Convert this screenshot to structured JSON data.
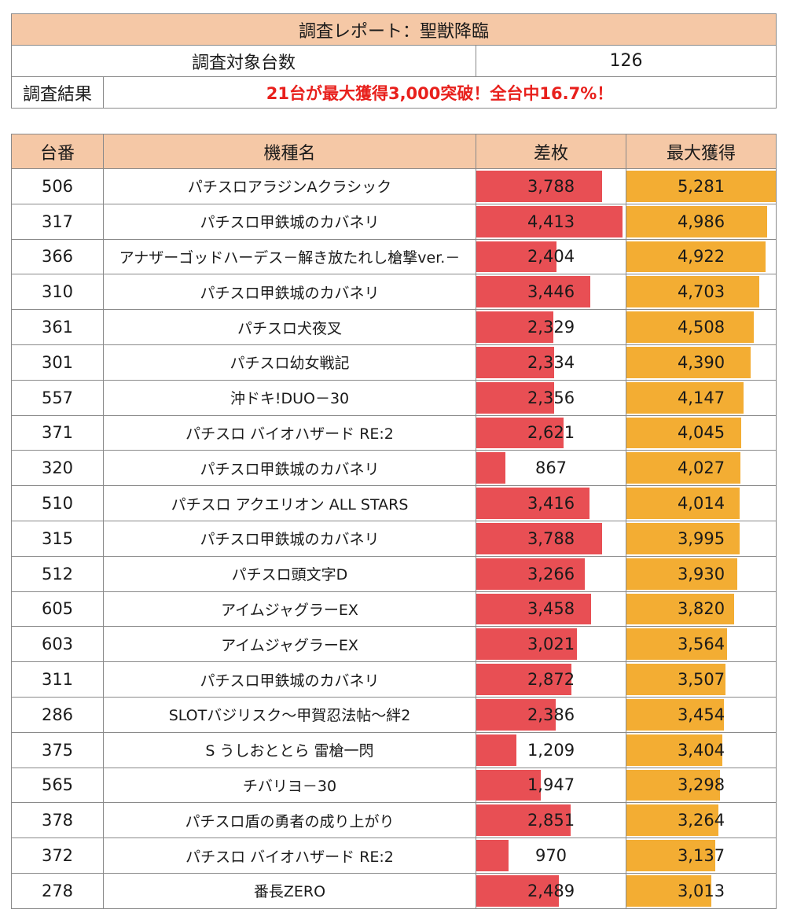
{
  "report": {
    "title": "調査レポート：聖獣降臨",
    "units_label": "調査対象台数",
    "units_value": "126",
    "result_label": "調査結果",
    "result_text": "21台が最大獲得3,000突破！全台中16.7%！"
  },
  "table": {
    "headers": [
      "台番",
      "機種名",
      "差枚",
      "最大獲得"
    ],
    "colors": {
      "diff_bar": "#e84f54",
      "max_bar": "#f3ad33",
      "header_bg": "#f5c8a6",
      "highlight_text": "#e8201c"
    },
    "rows": [
      {
        "no": "506",
        "name": "パチスロアラジンAクラシック",
        "diff": "3,788",
        "max": "5,281"
      },
      {
        "no": "317",
        "name": "パチスロ甲鉄城のカバネリ",
        "diff": "4,413",
        "max": "4,986"
      },
      {
        "no": "366",
        "name": "アナザーゴッドハーデス－解き放たれし槍撃ver.－",
        "diff": "2,404",
        "max": "4,922"
      },
      {
        "no": "310",
        "name": "パチスロ甲鉄城のカバネリ",
        "diff": "3,446",
        "max": "4,703"
      },
      {
        "no": "361",
        "name": "パチスロ犬夜叉",
        "diff": "2,329",
        "max": "4,508"
      },
      {
        "no": "301",
        "name": "パチスロ幼女戦記",
        "diff": "2,334",
        "max": "4,390"
      },
      {
        "no": "557",
        "name": "沖ドキ!DUO－30",
        "diff": "2,356",
        "max": "4,147"
      },
      {
        "no": "371",
        "name": "パチスロ バイオハザード RE:2",
        "diff": "2,621",
        "max": "4,045"
      },
      {
        "no": "320",
        "name": "パチスロ甲鉄城のカバネリ",
        "diff": "867",
        "max": "4,027"
      },
      {
        "no": "510",
        "name": "パチスロ アクエリオン ALL STARS",
        "diff": "3,416",
        "max": "4,014"
      },
      {
        "no": "315",
        "name": "パチスロ甲鉄城のカバネリ",
        "diff": "3,788",
        "max": "3,995"
      },
      {
        "no": "512",
        "name": "パチスロ頭文字D",
        "diff": "3,266",
        "max": "3,930"
      },
      {
        "no": "605",
        "name": "アイムジャグラーEX",
        "diff": "3,458",
        "max": "3,820"
      },
      {
        "no": "603",
        "name": "アイムジャグラーEX",
        "diff": "3,021",
        "max": "3,564"
      },
      {
        "no": "311",
        "name": "パチスロ甲鉄城のカバネリ",
        "diff": "2,872",
        "max": "3,507"
      },
      {
        "no": "286",
        "name": "SLOTバジリスク～甲賀忍法帖～絆2",
        "diff": "2,386",
        "max": "3,454"
      },
      {
        "no": "375",
        "name": "S うしおととら 雷槍一閃",
        "diff": "1,209",
        "max": "3,404"
      },
      {
        "no": "565",
        "name": "チバリヨ－30",
        "diff": "1,947",
        "max": "3,298"
      },
      {
        "no": "378",
        "name": "パチスロ盾の勇者の成り上がり",
        "diff": "2,851",
        "max": "3,264"
      },
      {
        "no": "372",
        "name": "パチスロ バイオハザード RE:2",
        "diff": "970",
        "max": "3,137"
      },
      {
        "no": "278",
        "name": "番長ZERO",
        "diff": "2,489",
        "max": "3,013"
      }
    ]
  }
}
